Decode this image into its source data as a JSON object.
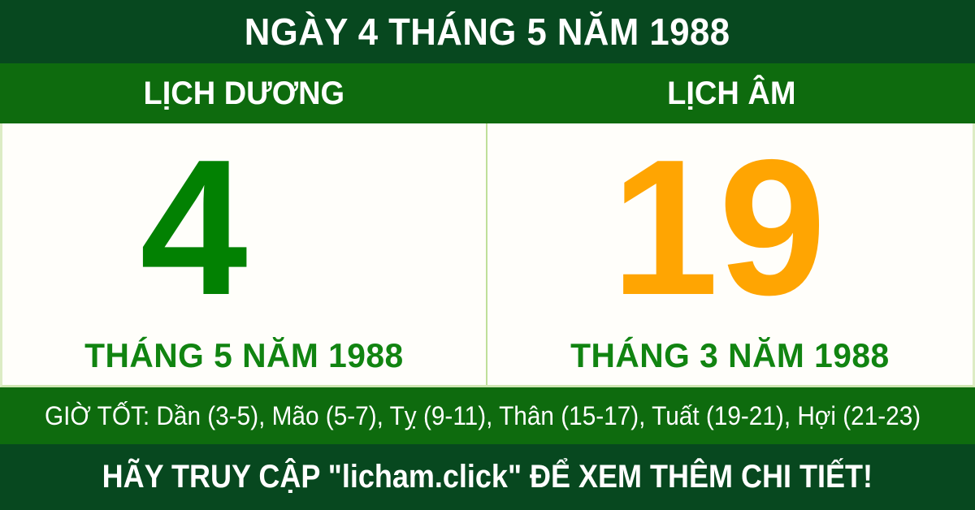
{
  "header": {
    "title": "NGÀY 4 THÁNG 5 NĂM 1988"
  },
  "columns": {
    "solar": {
      "label": "LỊCH DƯƠNG",
      "day": "4",
      "month_year": "THÁNG 5 NĂM 1988"
    },
    "lunar": {
      "label": "LỊCH ÂM",
      "day": "19",
      "month_year": "THÁNG 3 NĂM 1988"
    }
  },
  "good_hours": {
    "text": "GIỜ TỐT: Dần (3-5), Mão (5-7), Tỵ (9-11), Thân (15-17), Tuất (19-21), Hợi (21-23)"
  },
  "footer": {
    "cta": "HÃY TRUY CẬP \"licham.click\" ĐỂ XEM THÊM CHI TIẾT!"
  },
  "colors": {
    "dark_green": "#07481f",
    "green": "#0e6b0e",
    "solar_day": "#028102",
    "lunar_day": "#ffa502",
    "month_label": "#118411",
    "divider": "#bfdf9a",
    "text_white": "#ffffff"
  }
}
